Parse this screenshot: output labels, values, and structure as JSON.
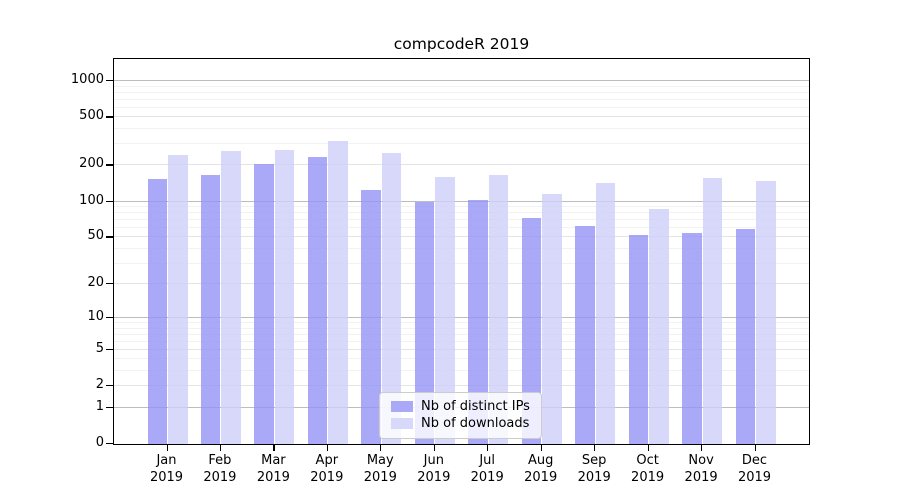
{
  "chart_data": {
    "type": "bar",
    "title": "compcodeR 2019",
    "categories": [
      "Jan",
      "Feb",
      "Mar",
      "Apr",
      "May",
      "Jun",
      "Jul",
      "Aug",
      "Sep",
      "Oct",
      "Nov",
      "Dec"
    ],
    "category_year": "2019",
    "series": [
      {
        "name": "Nb of distinct IPs",
        "color": "#a9a9f7",
        "values": [
          153,
          167,
          205,
          233,
          126,
          99,
          104,
          73,
          63,
          52,
          55,
          59
        ]
      },
      {
        "name": "Nb of downloads",
        "color": "#d8d8fa",
        "values": [
          243,
          262,
          268,
          320,
          252,
          160,
          168,
          116,
          142,
          86,
          157,
          148
        ]
      }
    ],
    "xlabel": "",
    "ylabel": "",
    "yticks": [
      0,
      1,
      2,
      5,
      10,
      20,
      50,
      100,
      200,
      500,
      1000
    ],
    "ylim": [
      0,
      1522
    ],
    "scale": "log1p",
    "grid": true,
    "legend": {
      "position": "lower-center",
      "items": [
        "Nb of distinct IPs",
        "Nb of downloads"
      ]
    }
  }
}
